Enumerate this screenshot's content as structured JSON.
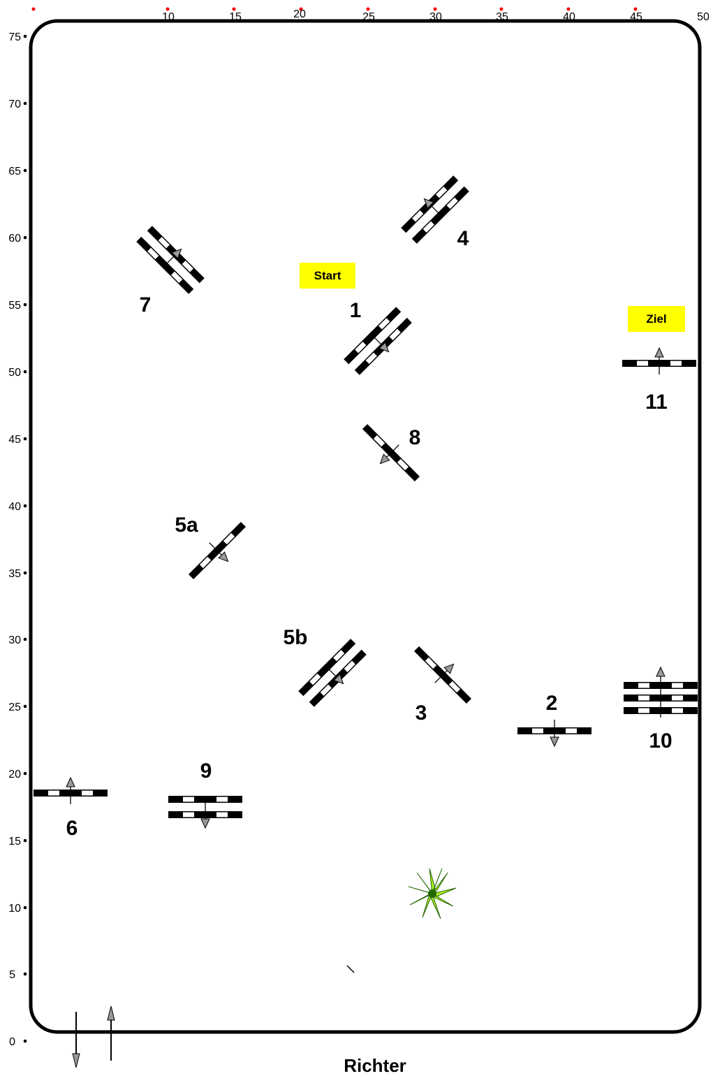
{
  "axis": {
    "x_ticks": [
      "10",
      "15",
      "20",
      "25",
      "30",
      "35",
      "40",
      "45",
      "50"
    ],
    "y_ticks": [
      "75",
      "70",
      "65",
      "60",
      "55",
      "50",
      "45",
      "40",
      "35",
      "30",
      "25",
      "20",
      "15",
      "10",
      "5",
      "0"
    ]
  },
  "markers": {
    "start_label": "Start",
    "finish_label": "Ziel",
    "marker_color": "#ffff00"
  },
  "obstacles": [
    {
      "id": "1",
      "label": "1",
      "rails": 2,
      "direction": "forward"
    },
    {
      "id": "2",
      "label": "2",
      "rails": 1,
      "direction": "down"
    },
    {
      "id": "3",
      "label": "3",
      "rails": 1,
      "direction": "up"
    },
    {
      "id": "4",
      "label": "4",
      "rails": 2,
      "direction": "up"
    },
    {
      "id": "5a",
      "label": "5a",
      "rails": 1,
      "direction": "forward"
    },
    {
      "id": "5b",
      "label": "5b",
      "rails": 2,
      "direction": "forward"
    },
    {
      "id": "6",
      "label": "6",
      "rails": 1,
      "direction": "up"
    },
    {
      "id": "7",
      "label": "7",
      "rails": 2,
      "direction": "up"
    },
    {
      "id": "8",
      "label": "8",
      "rails": 1,
      "direction": "back"
    },
    {
      "id": "9",
      "label": "9",
      "rails": 2,
      "direction": "down"
    },
    {
      "id": "10",
      "label": "10",
      "rails": 3,
      "direction": "up"
    },
    {
      "id": "11",
      "label": "11",
      "rails": 1,
      "direction": "up"
    }
  ],
  "judge_label": "Richter",
  "colors": {
    "rail_dark": "#000000",
    "rail_light": "#ffffff",
    "arrow_fill": "#999999",
    "tick_dot": "#ff0000",
    "plant_light": "#aaee22",
    "plant_dark": "#226600"
  },
  "icons": {
    "plant": "plant-icon",
    "entry_arrows": "entry-exit-arrows-icon"
  }
}
